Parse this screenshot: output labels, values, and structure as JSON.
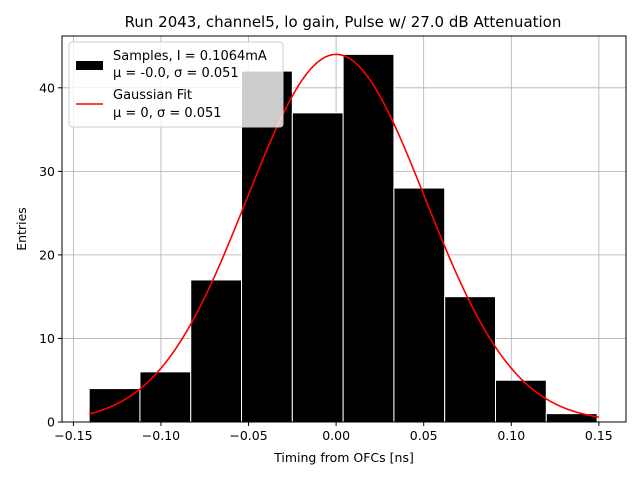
{
  "chart_data": {
    "type": "bar",
    "title": "Run 2043, channel5, lo gain, Pulse w/ 27.0 dB Attenuation",
    "xlabel": "Timing from OFCs [ns]",
    "ylabel": "Entries",
    "xlim": [
      -0.1565,
      0.1655
    ],
    "ylim": [
      0,
      46.2
    ],
    "grid": true,
    "legend_position": "top-left",
    "xticks": [
      -0.15,
      -0.1,
      -0.05,
      0.0,
      0.05,
      0.1,
      0.15
    ],
    "xtick_labels": [
      "−0.15",
      "−0.10",
      "−0.05",
      "0.00",
      "0.05",
      "0.10",
      "0.15"
    ],
    "yticks": [
      0,
      10,
      20,
      30,
      40
    ],
    "ytick_labels": [
      "0",
      "10",
      "20",
      "30",
      "40"
    ],
    "histogram": {
      "name": "Samples, I = 0.1064mA",
      "stats": "μ = -0.0, σ = 0.051",
      "color": "#000000",
      "edgecolor": "#ffffff",
      "bin_edges": [
        -0.141,
        -0.112,
        -0.083,
        -0.054,
        -0.025,
        0.004,
        0.033,
        0.062,
        0.091,
        0.12,
        0.149
      ],
      "counts": [
        4,
        6,
        17,
        42,
        37,
        44,
        28,
        15,
        5,
        1
      ]
    },
    "fit": {
      "name": "Gaussian Fit",
      "stats": "μ = 0, σ = 0.051",
      "color": "#ff0000",
      "mu": 0.0,
      "sigma": 0.051,
      "amplitude": 44.0,
      "x_range": [
        -0.141,
        0.15
      ]
    }
  }
}
